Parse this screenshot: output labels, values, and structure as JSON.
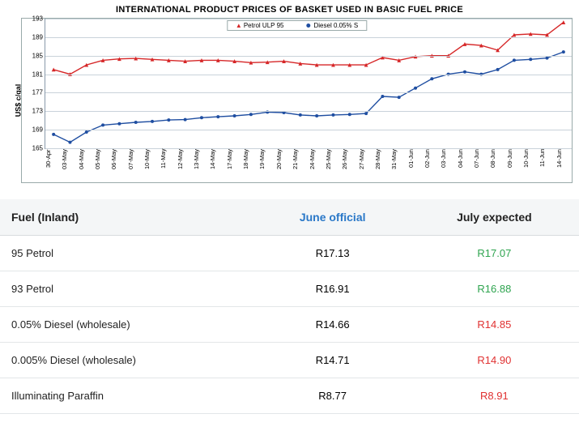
{
  "chart": {
    "title": "INTERNATIONAL PRODUCT PRICES OF BASKET USED IN BASIC FUEL PRICE",
    "y_label": "US$ c/gal",
    "background_color": "#ffffff",
    "border_color": "#9aa",
    "grid_color": "#c9d2da",
    "ylim": [
      165,
      193
    ],
    "yticks": [
      165,
      169,
      173,
      177,
      181,
      185,
      189,
      193
    ],
    "x_categories": [
      "30-Apr",
      "03-May",
      "04-May",
      "05-May",
      "06-May",
      "07-May",
      "10-May",
      "11-May",
      "12-May",
      "13-May",
      "14-May",
      "17-May",
      "18-May",
      "19-May",
      "20-May",
      "21-May",
      "24-May",
      "25-May",
      "26-May",
      "27-May",
      "28-May",
      "31-May",
      "01-Jun",
      "02-Jun",
      "03-Jun",
      "04-Jun",
      "07-Jun",
      "08-Jun",
      "09-Jun",
      "10-Jun",
      "11-Jun",
      "14-Jun"
    ],
    "series": [
      {
        "name": "Petrol ULP 95",
        "marker": "triangle",
        "color": "#d62728",
        "line_width": 1.4,
        "values": [
          182.0,
          181.0,
          183.0,
          184.0,
          184.3,
          184.4,
          184.2,
          184.0,
          183.8,
          184.0,
          184.0,
          183.8,
          183.5,
          183.6,
          183.8,
          183.3,
          183.0,
          183.0,
          183.0,
          183.0,
          184.6,
          184.0,
          184.8,
          185.0,
          185.0,
          187.5,
          187.2,
          186.2,
          189.5,
          189.7,
          189.5,
          192.2
        ]
      },
      {
        "name": "Diesel 0.05% S",
        "marker": "circle",
        "color": "#1f4ea1",
        "line_width": 1.4,
        "values": [
          168.0,
          166.3,
          168.5,
          170.0,
          170.3,
          170.6,
          170.8,
          171.1,
          171.2,
          171.6,
          171.8,
          172.0,
          172.3,
          172.8,
          172.7,
          172.2,
          172.0,
          172.2,
          172.3,
          172.5,
          176.2,
          176.0,
          178.0,
          180.0,
          181.0,
          181.5,
          181.0,
          182.0,
          184.0,
          184.2,
          184.5,
          185.8
        ]
      }
    ],
    "legend": {
      "petrol": "Petrol ULP 95",
      "diesel": "Diesel 0.05% S"
    }
  },
  "table": {
    "header": {
      "fuel": "Fuel (Inland)",
      "june": "June official",
      "july": "July expected"
    },
    "rows": [
      {
        "name": "95 Petrol",
        "june": "R17.13",
        "july": "R17.07",
        "july_class": "green"
      },
      {
        "name": "93 Petrol",
        "june": "R16.91",
        "july": "R16.88",
        "july_class": "green"
      },
      {
        "name": "0.05% Diesel (wholesale)",
        "june": "R14.66",
        "july": "R14.85",
        "july_class": "red"
      },
      {
        "name": "0.005% Diesel (wholesale)",
        "june": "R14.71",
        "july": "R14.90",
        "july_class": "red"
      },
      {
        "name": "Illuminating Paraffin",
        "june": "R8.77",
        "july": "R8.91",
        "july_class": "red"
      }
    ]
  }
}
